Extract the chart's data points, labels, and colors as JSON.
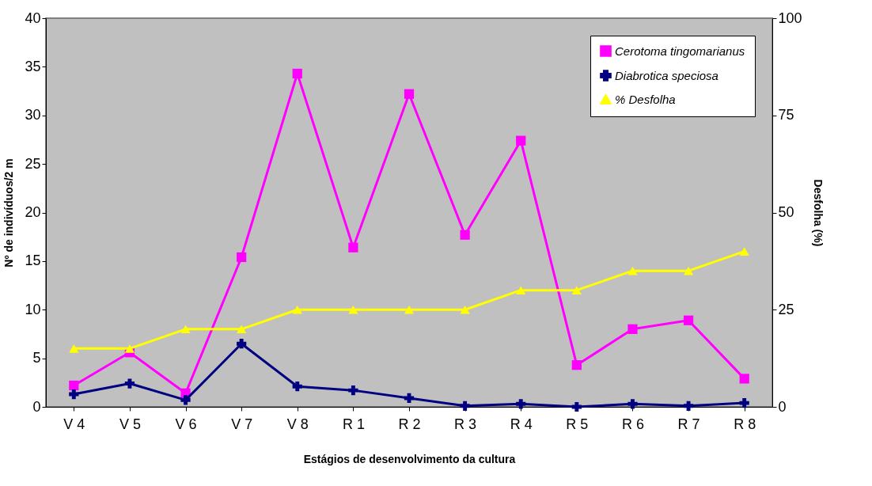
{
  "chart_data": {
    "type": "line",
    "xlabel": "Estágios de desenvolvimento da cultura",
    "ylabel": "Nº de  indivíduos/2 m",
    "y2label": "Desfolha (%)",
    "categories": [
      "V 4",
      "V 5",
      "V 6",
      "V 7",
      "V 8",
      "R 1",
      "R 2",
      "R 3",
      "R 4",
      "R 5",
      "R 6",
      "R 7",
      "R 8"
    ],
    "series": [
      {
        "name": "Cerotoma tingomarianus",
        "color": "#ff00ff",
        "marker": "square",
        "values": [
          2.2,
          5.6,
          1.4,
          15.4,
          34.3,
          16.4,
          32.2,
          17.7,
          27.4,
          4.3,
          8.0,
          8.9,
          2.9
        ]
      },
      {
        "name": "Diabrotica speciosa",
        "color": "#000080",
        "marker": "cross",
        "values": [
          1.3,
          2.4,
          0.7,
          6.5,
          2.1,
          1.7,
          0.9,
          0.1,
          0.3,
          0.0,
          0.3,
          0.1,
          0.4
        ]
      },
      {
        "name": "% Desfolha",
        "color": "#ffff00",
        "marker": "triangle",
        "axis": "y2",
        "values": [
          15,
          15,
          20,
          20,
          25,
          25,
          25,
          25,
          30,
          30,
          35,
          35,
          40
        ]
      }
    ],
    "ylim": [
      0,
      40
    ],
    "yticks": [
      0,
      5,
      10,
      15,
      20,
      25,
      30,
      35,
      40
    ],
    "y2lim": [
      0,
      100
    ],
    "y2ticks": [
      0,
      25,
      50,
      75,
      100
    ],
    "grid": false,
    "legend": "top right"
  }
}
